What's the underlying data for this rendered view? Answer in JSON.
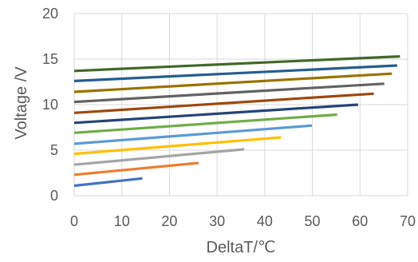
{
  "chart_data": {
    "type": "line",
    "title": "",
    "xlabel": "DeltaT/℃",
    "ylabel": "Voltage /V",
    "xlim": [
      0,
      70
    ],
    "ylim": [
      0,
      20
    ],
    "xticks": [
      0,
      10,
      20,
      30,
      40,
      50,
      60,
      70
    ],
    "yticks": [
      0,
      5,
      10,
      15,
      20
    ],
    "grid": true,
    "legend": "none",
    "series": [
      {
        "color": "#4472c4",
        "x": [
          0,
          14.3
        ],
        "y": [
          1.1,
          1.9
        ]
      },
      {
        "color": "#ed7d31",
        "x": [
          0,
          26.1
        ],
        "y": [
          2.3,
          3.6
        ]
      },
      {
        "color": "#a5a5a5",
        "x": [
          0,
          35.7
        ],
        "y": [
          3.4,
          5.1
        ]
      },
      {
        "color": "#ffc000",
        "x": [
          0,
          43.4
        ],
        "y": [
          4.6,
          6.4
        ]
      },
      {
        "color": "#5b9bd5",
        "x": [
          0,
          49.9
        ],
        "y": [
          5.7,
          7.7
        ]
      },
      {
        "color": "#70ad47",
        "x": [
          0,
          55.2
        ],
        "y": [
          6.9,
          8.9
        ]
      },
      {
        "color": "#264478",
        "x": [
          0,
          59.6
        ],
        "y": [
          8.0,
          10.0
        ]
      },
      {
        "color": "#9e480e",
        "x": [
          0,
          62.9
        ],
        "y": [
          9.1,
          11.2
        ]
      },
      {
        "color": "#636363",
        "x": [
          0,
          65.1
        ],
        "y": [
          10.3,
          12.3
        ]
      },
      {
        "color": "#997300",
        "x": [
          0,
          66.7
        ],
        "y": [
          11.4,
          13.4
        ]
      },
      {
        "color": "#255e91",
        "x": [
          0,
          67.8
        ],
        "y": [
          12.6,
          14.3
        ]
      },
      {
        "color": "#43682b",
        "x": [
          0,
          68.4
        ],
        "y": [
          13.7,
          15.3
        ]
      }
    ]
  }
}
